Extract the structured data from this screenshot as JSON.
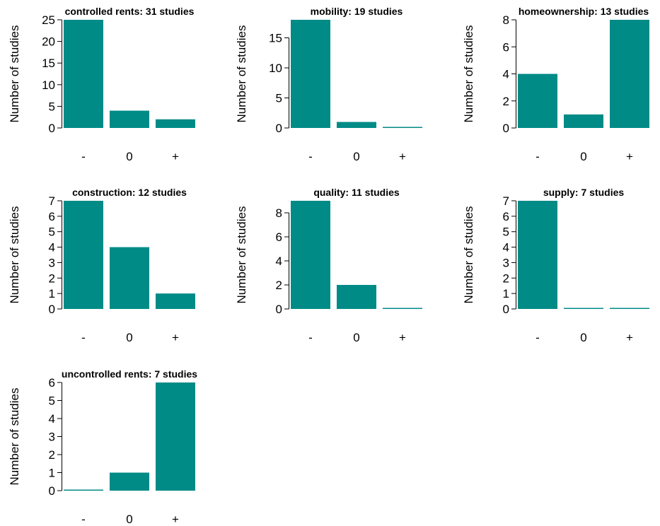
{
  "colors": {
    "bar": "#008b87",
    "axis": "#000000",
    "background": "#ffffff"
  },
  "chart_data": [
    {
      "type": "bar",
      "title": "controlled rents: 31 studies",
      "ylabel": "Number of studies",
      "categories": [
        "-",
        "0",
        "+"
      ],
      "values": [
        25,
        4,
        2
      ],
      "ylim": [
        0,
        25
      ],
      "yticks": [
        "0",
        "5",
        "10",
        "15",
        "20",
        "25"
      ]
    },
    {
      "type": "bar",
      "title": "mobility: 19 studies",
      "ylabel": "Number of studies",
      "categories": [
        "-",
        "0",
        "+"
      ],
      "values": [
        18,
        1,
        0
      ],
      "ylim": [
        0,
        18
      ],
      "yticks": [
        "0",
        "5",
        "10",
        "15"
      ]
    },
    {
      "type": "bar",
      "title": "homeownership: 13 studies",
      "ylabel": "Number of studies",
      "categories": [
        "-",
        "0",
        "+"
      ],
      "values": [
        4,
        1,
        8
      ],
      "ylim": [
        0,
        8
      ],
      "yticks": [
        "0",
        "2",
        "4",
        "6",
        "8"
      ]
    },
    {
      "type": "bar",
      "title": "construction: 12 studies",
      "ylabel": "Number of studies",
      "categories": [
        "-",
        "0",
        "+"
      ],
      "values": [
        7,
        4,
        1
      ],
      "ylim": [
        0,
        7
      ],
      "yticks": [
        "0",
        "1",
        "2",
        "3",
        "4",
        "5",
        "6",
        "7"
      ]
    },
    {
      "type": "bar",
      "title": "quality: 11 studies",
      "ylabel": "Number of studies",
      "categories": [
        "-",
        "0",
        "+"
      ],
      "values": [
        9,
        2,
        0
      ],
      "ylim": [
        0,
        9
      ],
      "yticks": [
        "0",
        "2",
        "4",
        "6",
        "8"
      ]
    },
    {
      "type": "bar",
      "title": "supply: 7 studies",
      "ylabel": "Number of studies",
      "categories": [
        "-",
        "0",
        "+"
      ],
      "values": [
        7,
        0,
        0
      ],
      "ylim": [
        0,
        7
      ],
      "yticks": [
        "0",
        "1",
        "2",
        "3",
        "4",
        "5",
        "6",
        "7"
      ]
    },
    {
      "type": "bar",
      "title": "uncontrolled rents: 7 studies",
      "ylabel": "Number of studies",
      "categories": [
        "-",
        "0",
        "+"
      ],
      "values": [
        0,
        1,
        6
      ],
      "ylim": [
        0,
        6
      ],
      "yticks": [
        "0",
        "1",
        "2",
        "3",
        "4",
        "5",
        "6"
      ]
    }
  ]
}
